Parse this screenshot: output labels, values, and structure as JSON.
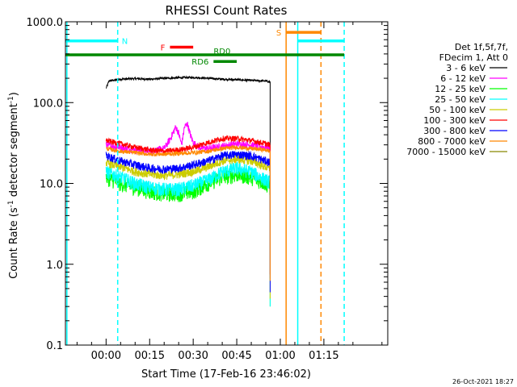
{
  "chart_data": {
    "type": "line",
    "title": "RHESSI Count Rates",
    "xlabel": "Start Time (17-Feb-16 23:46:02)",
    "ylabel_prefix": "Count Rate (s",
    "ylabel_exp": "-1",
    "ylabel_mid": " detector segment",
    "ylabel_exp2": "-1",
    "ylabel_suffix": ")",
    "y_scale": "log",
    "ylim": [
      0.1,
      1000
    ],
    "xlim_minutes": [
      -14,
      97
    ],
    "x_ticks": [
      {
        "minutes": 0,
        "label": "00:00"
      },
      {
        "minutes": 15,
        "label": "00:15"
      },
      {
        "minutes": 30,
        "label": "00:30"
      },
      {
        "minutes": 45,
        "label": "00:45"
      },
      {
        "minutes": 60,
        "label": "01:00"
      },
      {
        "minutes": 75,
        "label": "01:15"
      }
    ],
    "y_ticks": [
      {
        "value": 0.1,
        "label": "0.1"
      },
      {
        "value": 1,
        "label": "1.0"
      },
      {
        "value": 10,
        "label": "10.0"
      },
      {
        "value": 100,
        "label": "100.0"
      },
      {
        "value": 1000,
        "label": "1000.0"
      }
    ],
    "legend": {
      "header": [
        "Det 1f,5f,7f,",
        "FDecim 1, Att 0"
      ],
      "position": "right"
    },
    "series": [
      {
        "name": "3 - 6 keV",
        "color": "#000000",
        "x": [
          0,
          1,
          5,
          10,
          15,
          20,
          25,
          30,
          35,
          40,
          45,
          50,
          55,
          56.5
        ],
        "y": [
          150,
          185,
          195,
          198,
          195,
          200,
          203,
          205,
          200,
          195,
          192,
          188,
          185,
          180
        ]
      },
      {
        "name": "6 - 12 keV",
        "color": "#ff00ff",
        "x": [
          0,
          5,
          10,
          15,
          20,
          22,
          24,
          25,
          26,
          27,
          28,
          29,
          30,
          32,
          35,
          40,
          45,
          50,
          55,
          56.5
        ],
        "y": [
          30,
          28,
          26,
          25,
          27,
          35,
          50,
          42,
          30,
          50,
          55,
          40,
          32,
          28,
          27,
          29,
          31,
          30,
          28,
          27
        ]
      },
      {
        "name": "12 - 25 keV",
        "color": "#00ff00",
        "x": [
          0,
          5,
          10,
          15,
          20,
          25,
          30,
          35,
          40,
          45,
          50,
          55,
          56.5
        ],
        "y": [
          12,
          10,
          9,
          8,
          7.5,
          7.5,
          8,
          10,
          12,
          13,
          12,
          10,
          9
        ]
      },
      {
        "name": "25 - 50 keV",
        "color": "#00ffff",
        "x": [
          0,
          5,
          10,
          15,
          20,
          25,
          30,
          35,
          40,
          45,
          50,
          55,
          56.5
        ],
        "y": [
          14,
          12,
          10,
          9,
          8.5,
          8.5,
          9.5,
          11,
          14,
          15.5,
          14,
          11,
          10.5
        ]
      },
      {
        "name": "50 - 100 keV",
        "color": "#cccc00",
        "x": [
          0,
          5,
          10,
          15,
          20,
          25,
          30,
          35,
          40,
          45,
          50,
          55,
          56.5
        ],
        "y": [
          18,
          16,
          14,
          13,
          12.5,
          13,
          14,
          16,
          19,
          20,
          19,
          16,
          15
        ]
      },
      {
        "name": "100 - 300 keV",
        "color": "#ff0000",
        "x": [
          0,
          5,
          10,
          15,
          20,
          25,
          30,
          35,
          40,
          45,
          50,
          55,
          56.5
        ],
        "y": [
          34,
          31,
          28,
          26,
          25,
          26,
          28,
          32,
          36,
          36,
          34,
          31,
          30
        ]
      },
      {
        "name": "300 - 800 keV",
        "color": "#0000ff",
        "x": [
          0,
          5,
          10,
          15,
          20,
          25,
          30,
          35,
          40,
          45,
          50,
          55,
          56.5
        ],
        "y": [
          22,
          19,
          17,
          15.5,
          15,
          15.5,
          17,
          19,
          22,
          23,
          22,
          19,
          18
        ]
      },
      {
        "name": "800 - 7000 keV",
        "color": "#ff8800",
        "x": [
          0,
          5,
          10,
          15,
          20,
          25,
          30,
          35,
          40,
          45,
          50,
          55,
          56.5
        ],
        "y": [
          27,
          25,
          24,
          23,
          23,
          23.5,
          24,
          25,
          27,
          28,
          27,
          26,
          25
        ]
      },
      {
        "name": "7000 - 15000 keV",
        "color": "#888800",
        "x": [],
        "y": []
      }
    ],
    "vertical_lines": [
      {
        "minutes": -13.5,
        "color": "#00ffff",
        "style": "solid"
      },
      {
        "minutes": 4,
        "color": "#00ffff",
        "style": "dashed"
      },
      {
        "minutes": 62,
        "color": "#ff8800",
        "style": "solid"
      },
      {
        "minutes": 66,
        "color": "#00ffff",
        "style": "solid"
      },
      {
        "minutes": 74,
        "color": "#ff8800",
        "style": "dashed"
      },
      {
        "minutes": 82,
        "color": "#00ffff",
        "style": "dashed"
      }
    ],
    "bars": [
      {
        "label": "N",
        "color": "#00ffff",
        "x_from": -14,
        "x_to": 4,
        "y_value": 580,
        "label_side": "after"
      },
      {
        "label": "",
        "color": "#00ffff",
        "x_from": 66,
        "x_to": 82,
        "y_value": 580,
        "label_side": "none"
      },
      {
        "label": "S",
        "color": "#ff8800",
        "x_from": 62,
        "x_to": 74,
        "y_value": 740,
        "label_side": "before"
      },
      {
        "label": "F",
        "color": "#ff0000",
        "x_from": 22,
        "x_to": 30,
        "y_value": 485,
        "label_side": "before"
      },
      {
        "label": "RD0",
        "color": "#008800",
        "x_from": -14,
        "x_to": 82,
        "y_value": 390,
        "label_side": "center"
      },
      {
        "label": "RD6",
        "color": "#008800",
        "x_from": 37,
        "x_to": 45,
        "y_value": 323,
        "label_side": "before"
      }
    ],
    "stamp": "26-Oct-2021 18:27"
  },
  "colors": {
    "axes": "#000000",
    "background": "#ffffff"
  }
}
